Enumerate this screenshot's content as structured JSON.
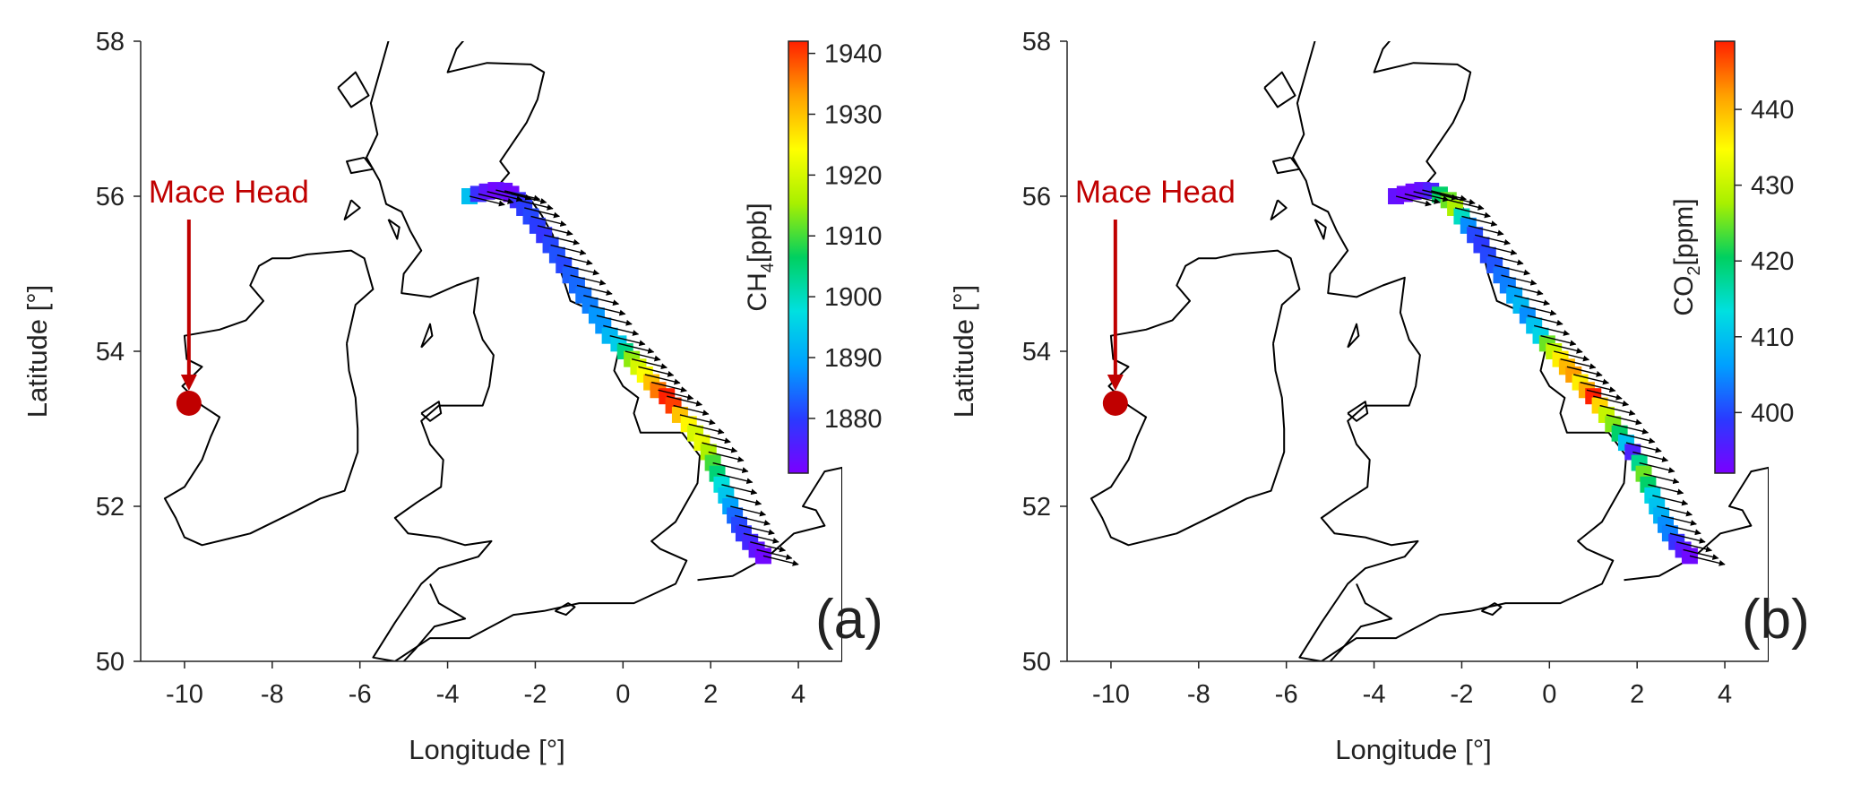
{
  "colors": {
    "annotation": "#c00000",
    "track_outline": "#000000",
    "wind_arrow": "#000000",
    "colormap": [
      "#7a00ff",
      "#2a3aff",
      "#00a0ff",
      "#00e0e0",
      "#00d060",
      "#a8f000",
      "#ffff00",
      "#ffa000",
      "#ff2000"
    ]
  },
  "chart_data": [
    {
      "type": "scatter",
      "panel_label": "(a)",
      "xlabel": "Longitude [°]",
      "ylabel": "Latitude [°]",
      "xlim": [
        -11,
        5
      ],
      "ylim": [
        50,
        58
      ],
      "xticks": [
        -10,
        -8,
        -6,
        -4,
        -2,
        0,
        2,
        4
      ],
      "xtick_labels": [
        "-10",
        "-8",
        "-6",
        "-4",
        "-2",
        "0",
        "2",
        "4"
      ],
      "yticks": [
        50,
        52,
        54,
        56,
        58
      ],
      "ytick_labels": [
        "50",
        "52",
        "54",
        "56",
        "58"
      ],
      "annotation": {
        "text": "Mace Head",
        "lon": -9.9,
        "lat": 53.33
      },
      "colorbar": {
        "label": "CH4[ppb]",
        "label_main": "CH",
        "label_sub": "4",
        "label_unit": "[ppb]",
        "vmin": 1871,
        "vmax": 1942,
        "ticks": [
          1880,
          1890,
          1900,
          1910,
          1920,
          1930,
          1940
        ],
        "tick_labels": [
          "1880",
          "1890",
          "1900",
          "1910",
          "1920",
          "1930",
          "1940"
        ]
      },
      "grid": false,
      "track": [
        {
          "lon": -3.5,
          "lat": 56.0,
          "value": 1893
        },
        {
          "lon": -3.3,
          "lat": 56.03,
          "value": 1878
        },
        {
          "lon": -3.1,
          "lat": 56.06,
          "value": 1874
        },
        {
          "lon": -2.9,
          "lat": 56.08,
          "value": 1872
        },
        {
          "lon": -2.7,
          "lat": 56.07,
          "value": 1873
        },
        {
          "lon": -2.55,
          "lat": 56.03,
          "value": 1872
        },
        {
          "lon": -2.4,
          "lat": 55.95,
          "value": 1878
        },
        {
          "lon": -2.25,
          "lat": 55.85,
          "value": 1880
        },
        {
          "lon": -2.1,
          "lat": 55.74,
          "value": 1881
        },
        {
          "lon": -1.95,
          "lat": 55.62,
          "value": 1880
        },
        {
          "lon": -1.8,
          "lat": 55.5,
          "value": 1879
        },
        {
          "lon": -1.65,
          "lat": 55.37,
          "value": 1881
        },
        {
          "lon": -1.5,
          "lat": 55.24,
          "value": 1882
        },
        {
          "lon": -1.35,
          "lat": 55.11,
          "value": 1881
        },
        {
          "lon": -1.2,
          "lat": 54.98,
          "value": 1883
        },
        {
          "lon": -1.05,
          "lat": 54.85,
          "value": 1884
        },
        {
          "lon": -0.9,
          "lat": 54.72,
          "value": 1885
        },
        {
          "lon": -0.75,
          "lat": 54.59,
          "value": 1886
        },
        {
          "lon": -0.6,
          "lat": 54.46,
          "value": 1888
        },
        {
          "lon": -0.45,
          "lat": 54.33,
          "value": 1888
        },
        {
          "lon": -0.3,
          "lat": 54.2,
          "value": 1892
        },
        {
          "lon": -0.1,
          "lat": 54.1,
          "value": 1895
        },
        {
          "lon": 0.05,
          "lat": 54.0,
          "value": 1904
        },
        {
          "lon": 0.2,
          "lat": 53.9,
          "value": 1914
        },
        {
          "lon": 0.35,
          "lat": 53.8,
          "value": 1920
        },
        {
          "lon": 0.5,
          "lat": 53.7,
          "value": 1924
        },
        {
          "lon": 0.65,
          "lat": 53.6,
          "value": 1930
        },
        {
          "lon": 0.8,
          "lat": 53.5,
          "value": 1936
        },
        {
          "lon": 1.0,
          "lat": 53.42,
          "value": 1942
        },
        {
          "lon": 1.15,
          "lat": 53.3,
          "value": 1940
        },
        {
          "lon": 1.3,
          "lat": 53.18,
          "value": 1930
        },
        {
          "lon": 1.5,
          "lat": 53.06,
          "value": 1925
        },
        {
          "lon": 1.65,
          "lat": 52.94,
          "value": 1920
        },
        {
          "lon": 1.8,
          "lat": 52.82,
          "value": 1922
        },
        {
          "lon": 1.95,
          "lat": 52.7,
          "value": 1916
        },
        {
          "lon": 2.05,
          "lat": 52.56,
          "value": 1910
        },
        {
          "lon": 2.15,
          "lat": 52.42,
          "value": 1905
        },
        {
          "lon": 2.25,
          "lat": 52.28,
          "value": 1898
        },
        {
          "lon": 2.35,
          "lat": 52.14,
          "value": 1894
        },
        {
          "lon": 2.45,
          "lat": 52.0,
          "value": 1889
        },
        {
          "lon": 2.55,
          "lat": 51.88,
          "value": 1884
        },
        {
          "lon": 2.65,
          "lat": 51.76,
          "value": 1881
        },
        {
          "lon": 2.75,
          "lat": 51.65,
          "value": 1879
        },
        {
          "lon": 2.9,
          "lat": 51.54,
          "value": 1877
        },
        {
          "lon": 3.05,
          "lat": 51.44,
          "value": 1874
        },
        {
          "lon": 3.2,
          "lat": 51.36,
          "value": 1872
        }
      ]
    },
    {
      "type": "scatter",
      "panel_label": "(b)",
      "xlabel": "Longitude [°]",
      "ylabel": "Latitude [°]",
      "xlim": [
        -11,
        5
      ],
      "ylim": [
        50,
        58
      ],
      "xticks": [
        -10,
        -8,
        -6,
        -4,
        -2,
        0,
        2,
        4
      ],
      "xtick_labels": [
        "-10",
        "-8",
        "-6",
        "-4",
        "-2",
        "0",
        "2",
        "4"
      ],
      "yticks": [
        50,
        52,
        54,
        56,
        58
      ],
      "ytick_labels": [
        "50",
        "52",
        "54",
        "56",
        "58"
      ],
      "annotation": {
        "text": "Mace Head",
        "lon": -9.9,
        "lat": 53.33
      },
      "colorbar": {
        "label": "CO2[ppm]",
        "label_main": "CO",
        "label_sub": "2",
        "label_unit": "[ppm]",
        "vmin": 392,
        "vmax": 449,
        "ticks": [
          400,
          410,
          420,
          430,
          440
        ],
        "tick_labels": [
          "400",
          "410",
          "420",
          "430",
          "440"
        ]
      },
      "grid": false,
      "track": [
        {
          "lon": -3.5,
          "lat": 56.0,
          "value": 394
        },
        {
          "lon": -3.3,
          "lat": 56.03,
          "value": 393
        },
        {
          "lon": -3.1,
          "lat": 56.06,
          "value": 393
        },
        {
          "lon": -2.9,
          "lat": 56.08,
          "value": 394
        },
        {
          "lon": -2.7,
          "lat": 56.07,
          "value": 396
        },
        {
          "lon": -2.5,
          "lat": 56.02,
          "value": 420
        },
        {
          "lon": -2.3,
          "lat": 55.95,
          "value": 425
        },
        {
          "lon": -2.15,
          "lat": 55.85,
          "value": 428
        },
        {
          "lon": -2.0,
          "lat": 55.74,
          "value": 415
        },
        {
          "lon": -1.85,
          "lat": 55.62,
          "value": 405
        },
        {
          "lon": -1.7,
          "lat": 55.5,
          "value": 400
        },
        {
          "lon": -1.55,
          "lat": 55.37,
          "value": 399
        },
        {
          "lon": -1.4,
          "lat": 55.24,
          "value": 400
        },
        {
          "lon": -1.25,
          "lat": 55.11,
          "value": 401
        },
        {
          "lon": -1.1,
          "lat": 54.98,
          "value": 403
        },
        {
          "lon": -0.95,
          "lat": 54.85,
          "value": 404
        },
        {
          "lon": -0.8,
          "lat": 54.72,
          "value": 407
        },
        {
          "lon": -0.65,
          "lat": 54.59,
          "value": 409
        },
        {
          "lon": -0.5,
          "lat": 54.46,
          "value": 405
        },
        {
          "lon": -0.35,
          "lat": 54.33,
          "value": 410
        },
        {
          "lon": -0.2,
          "lat": 54.2,
          "value": 412
        },
        {
          "lon": -0.05,
          "lat": 54.1,
          "value": 425
        },
        {
          "lon": 0.1,
          "lat": 54.0,
          "value": 430
        },
        {
          "lon": 0.25,
          "lat": 53.9,
          "value": 436
        },
        {
          "lon": 0.4,
          "lat": 53.8,
          "value": 440
        },
        {
          "lon": 0.55,
          "lat": 53.7,
          "value": 442
        },
        {
          "lon": 0.7,
          "lat": 53.6,
          "value": 436
        },
        {
          "lon": 0.85,
          "lat": 53.5,
          "value": 441
        },
        {
          "lon": 1.0,
          "lat": 53.42,
          "value": 449
        },
        {
          "lon": 1.15,
          "lat": 53.3,
          "value": 438
        },
        {
          "lon": 1.3,
          "lat": 53.18,
          "value": 430
        },
        {
          "lon": 1.45,
          "lat": 53.06,
          "value": 426
        },
        {
          "lon": 1.6,
          "lat": 52.94,
          "value": 420
        },
        {
          "lon": 1.75,
          "lat": 52.82,
          "value": 410
        },
        {
          "lon": 1.9,
          "lat": 52.7,
          "value": 396
        },
        {
          "lon": 2.05,
          "lat": 52.56,
          "value": 418
        },
        {
          "lon": 2.15,
          "lat": 52.42,
          "value": 425
        },
        {
          "lon": 2.25,
          "lat": 52.28,
          "value": 420
        },
        {
          "lon": 2.35,
          "lat": 52.14,
          "value": 412
        },
        {
          "lon": 2.45,
          "lat": 52.0,
          "value": 410
        },
        {
          "lon": 2.55,
          "lat": 51.88,
          "value": 408
        },
        {
          "lon": 2.65,
          "lat": 51.76,
          "value": 405
        },
        {
          "lon": 2.75,
          "lat": 51.65,
          "value": 404
        },
        {
          "lon": 2.9,
          "lat": 51.54,
          "value": 398
        },
        {
          "lon": 3.05,
          "lat": 51.44,
          "value": 395
        },
        {
          "lon": 3.2,
          "lat": 51.36,
          "value": 393
        }
      ]
    }
  ]
}
